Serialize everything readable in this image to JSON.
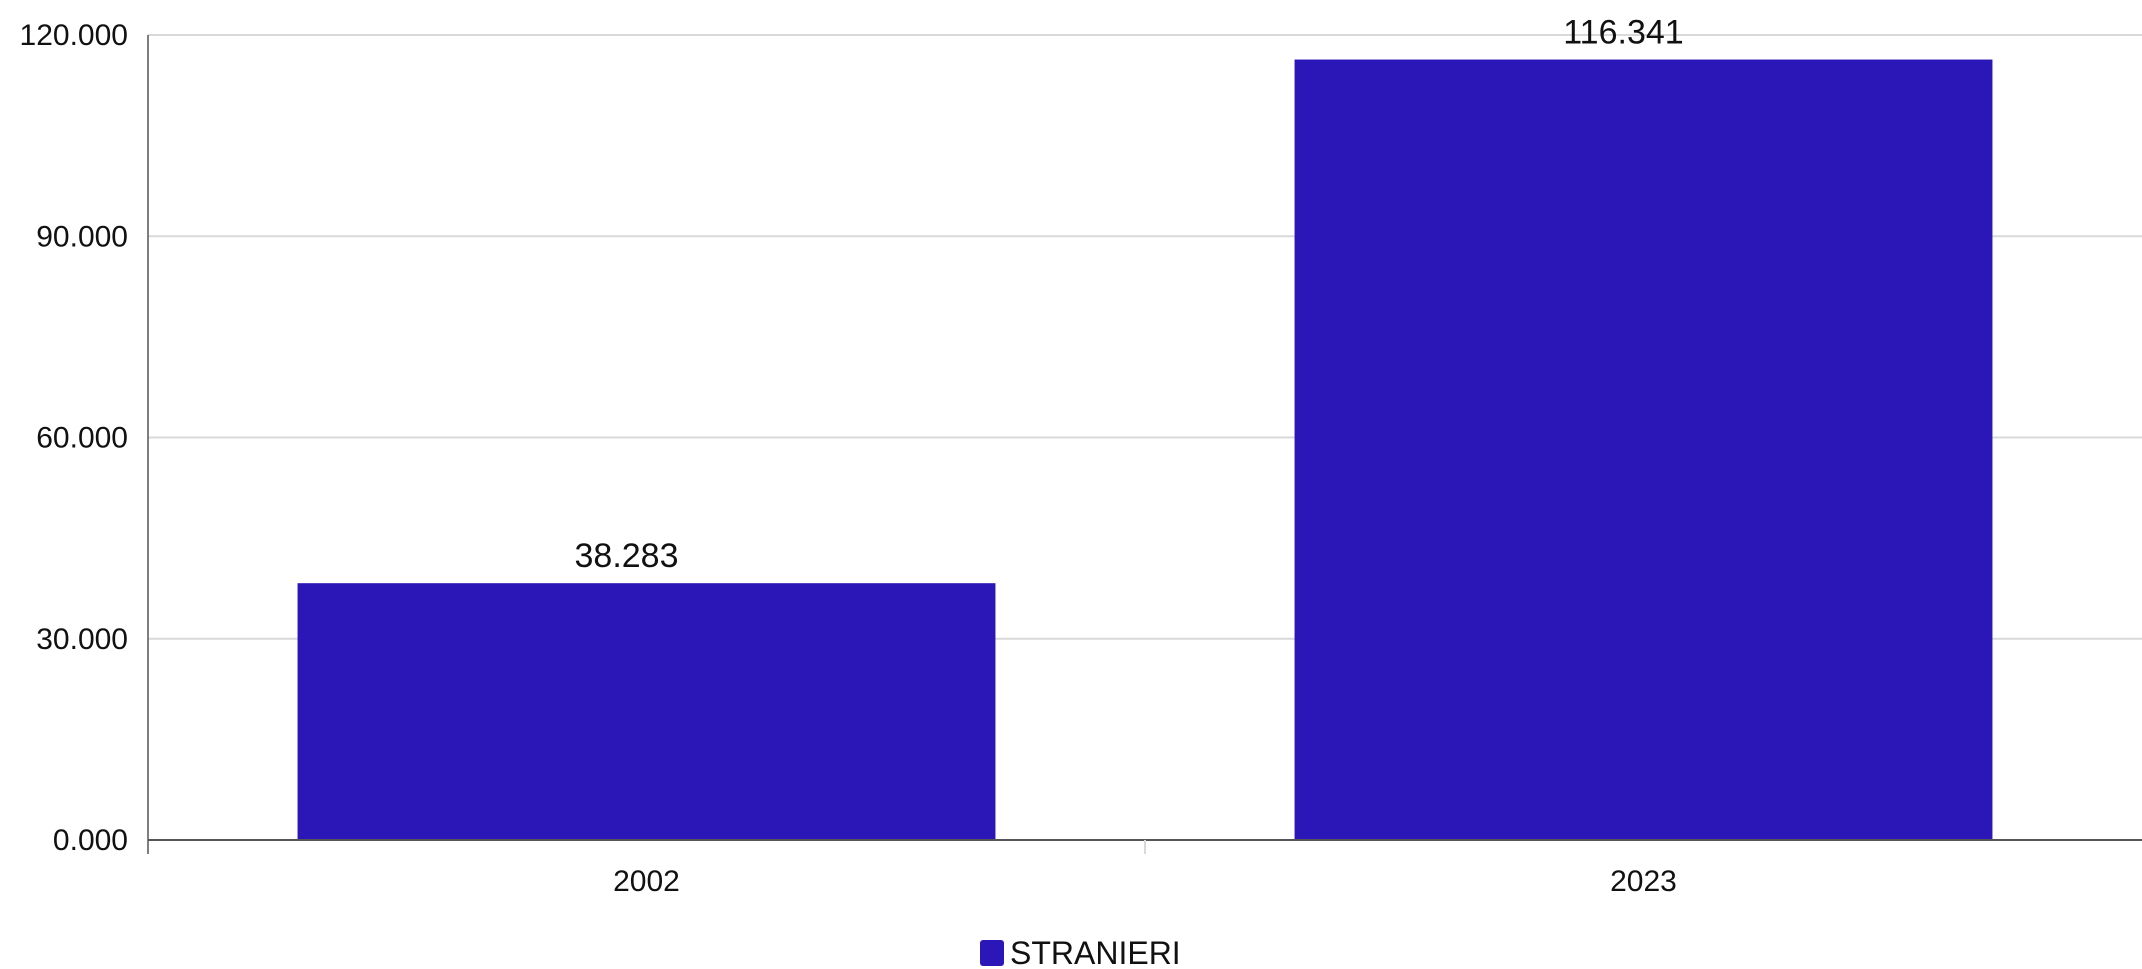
{
  "chart_data": {
    "type": "bar",
    "categories": [
      "2002",
      "2023"
    ],
    "series": [
      {
        "name": "STRANIERI",
        "values": [
          38283,
          116341
        ],
        "value_labels": [
          "38.283",
          "116.341"
        ],
        "color": "#2B17B8"
      }
    ],
    "ylim": [
      0,
      120000
    ],
    "yticks": [
      0,
      30000,
      60000,
      90000,
      120000
    ],
    "ytick_labels": [
      "0.000",
      "30.000",
      "60.000",
      "90.000",
      "120.000"
    ],
    "grid": true,
    "legend_position": "bottom-center",
    "title": "",
    "xlabel": "",
    "ylabel": ""
  },
  "colors": {
    "grid": "#d9d9d9",
    "axis": "#555555",
    "text": "#111111"
  }
}
